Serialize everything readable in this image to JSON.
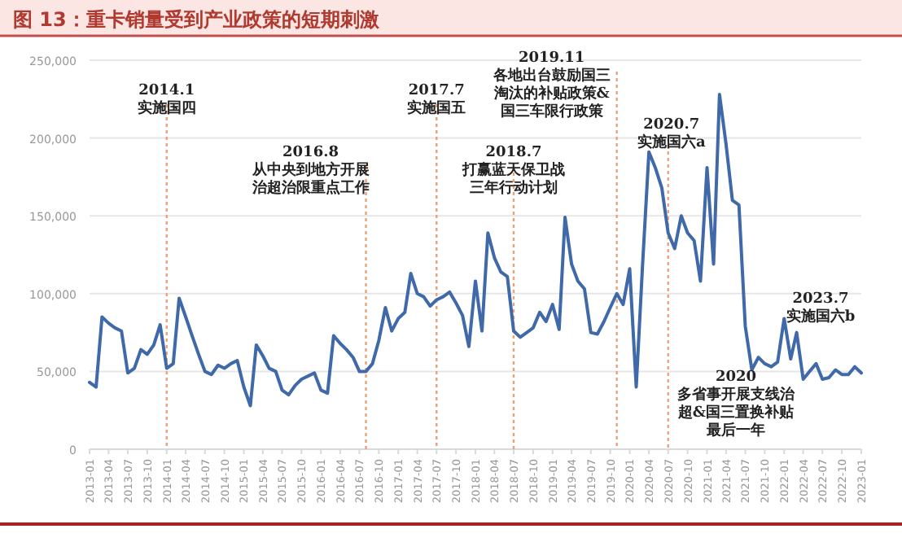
{
  "chart_data": {
    "type": "line",
    "title": "图 13：重卡销量受到产业政策的短期刺激",
    "x": [
      "2013-01",
      "2013-02",
      "2013-03",
      "2013-04",
      "2013-05",
      "2013-06",
      "2013-07",
      "2013-08",
      "2013-09",
      "2013-10",
      "2013-11",
      "2013-12",
      "2014-01",
      "2014-02",
      "2014-03",
      "2014-04",
      "2014-05",
      "2014-06",
      "2014-07",
      "2014-08",
      "2014-09",
      "2014-10",
      "2014-11",
      "2014-12",
      "2015-01",
      "2015-02",
      "2015-03",
      "2015-04",
      "2015-05",
      "2015-06",
      "2015-07",
      "2015-08",
      "2015-09",
      "2015-10",
      "2015-11",
      "2015-12",
      "2016-01",
      "2016-02",
      "2016-03",
      "2016-04",
      "2016-05",
      "2016-06",
      "2016-07",
      "2016-08",
      "2016-09",
      "2016-10",
      "2016-11",
      "2016-12",
      "2017-01",
      "2017-02",
      "2017-03",
      "2017-04",
      "2017-05",
      "2017-06",
      "2017-07",
      "2017-08",
      "2017-09",
      "2017-10",
      "2017-11",
      "2017-12",
      "2018-01",
      "2018-02",
      "2018-03",
      "2018-04",
      "2018-05",
      "2018-06",
      "2018-07",
      "2018-08",
      "2018-09",
      "2018-10",
      "2018-11",
      "2018-12",
      "2019-01",
      "2019-02",
      "2019-03",
      "2019-04",
      "2019-05",
      "2019-06",
      "2019-07",
      "2019-08",
      "2019-09",
      "2019-10",
      "2019-11",
      "2019-12",
      "2020-01",
      "2020-02",
      "2020-03",
      "2020-04",
      "2020-05",
      "2020-06",
      "2020-07",
      "2020-08",
      "2020-09",
      "2020-10",
      "2020-11",
      "2020-12",
      "2021-01",
      "2021-02",
      "2021-03",
      "2021-04",
      "2021-05",
      "2021-06",
      "2021-07",
      "2021-08",
      "2021-09",
      "2021-10",
      "2021-11",
      "2021-12",
      "2022-01",
      "2022-02",
      "2022-03",
      "2022-04",
      "2022-05",
      "2022-06",
      "2022-07",
      "2022-08",
      "2022-09",
      "2022-10",
      "2022-11",
      "2022-12",
      "2023-01"
    ],
    "series": [
      {
        "color": "#3f69a8",
        "values": [
          43000,
          40000,
          85000,
          81000,
          78000,
          76000,
          49000,
          52000,
          64000,
          61000,
          67000,
          80000,
          52000,
          55000,
          97000,
          85000,
          73000,
          61000,
          50000,
          48000,
          54000,
          52000,
          55000,
          57000,
          40000,
          28000,
          67000,
          60000,
          52000,
          50000,
          38000,
          35000,
          41000,
          45000,
          47000,
          49000,
          38000,
          36000,
          73000,
          68000,
          64000,
          59000,
          50000,
          50000,
          55000,
          70000,
          91000,
          76000,
          84000,
          88000,
          113000,
          100000,
          98000,
          92000,
          96000,
          98000,
          101000,
          94000,
          86000,
          66000,
          108000,
          76000,
          139000,
          123000,
          114000,
          111000,
          76000,
          72000,
          75000,
          78000,
          88000,
          82000,
          93000,
          77000,
          149000,
          119000,
          108000,
          103000,
          75000,
          74000,
          82000,
          91000,
          100000,
          93000,
          116000,
          40000,
          116000,
          191000,
          181000,
          168000,
          139000,
          129000,
          150000,
          139000,
          134000,
          108000,
          181000,
          119000,
          228000,
          196000,
          160000,
          157000,
          79000,
          51000,
          59000,
          55000,
          53000,
          56000,
          84000,
          58000,
          75000,
          45000,
          50000,
          55000,
          45000,
          46000,
          51000,
          48000,
          48000,
          53000,
          49000
        ]
      }
    ],
    "xlim": [
      "2013-01",
      "2023-01"
    ],
    "xticks": [
      "2013-01",
      "2013-04",
      "2013-07",
      "2013-10",
      "2014-01",
      "2014-04",
      "2014-07",
      "2014-10",
      "2015-01",
      "2015-04",
      "2015-07",
      "2015-10",
      "2016-01",
      "2016-04",
      "2016-07",
      "2016-10",
      "2017-01",
      "2017-04",
      "2017-07",
      "2017-10",
      "2018-01",
      "2018-04",
      "2018-07",
      "2018-10",
      "2019-01",
      "2019-04",
      "2019-07",
      "2019-10",
      "2020-01",
      "2020-04",
      "2020-07",
      "2020-10",
      "2021-01",
      "2021-04",
      "2021-07",
      "2021-10",
      "2022-01",
      "2022-04",
      "2022-07",
      "2022-10",
      "2023-01"
    ],
    "ylim": [
      0,
      250000
    ],
    "yticks": [
      {
        "value": 0,
        "label": "0"
      },
      {
        "value": 50000,
        "label": "50,000"
      },
      {
        "value": 100000,
        "label": "100,000"
      },
      {
        "value": 150000,
        "label": "150,000"
      },
      {
        "value": 200000,
        "label": "200,000"
      },
      {
        "value": 250000,
        "label": "250,000"
      }
    ],
    "grid": "y",
    "line_style": "solid",
    "ref_lines": [
      {
        "axis": "x",
        "value": "2014-01",
        "label": "2014.1\n实施国四",
        "color": "#e9a27a",
        "line_style": "dotted"
      },
      {
        "axis": "x",
        "value": "2016-08",
        "label": "2016.8\n从中央到地方开展治超治限重点工作",
        "color": "#e9a27a",
        "line_style": "dotted"
      },
      {
        "axis": "x",
        "value": "2017-07",
        "label": "2017.7\n实施国五",
        "color": "#e9a27a",
        "line_style": "dotted"
      },
      {
        "axis": "x",
        "value": "2018-07",
        "label": "2018.7\n打赢蓝天保卫战三年行动计划",
        "color": "#e9a27a",
        "line_style": "dotted"
      },
      {
        "axis": "x",
        "value": "2019-11",
        "label": "2019.11\n各地出台鼓励国三淘汰的补贴政策&国三车限行政策",
        "color": "#e9a27a",
        "line_style": "dotted"
      },
      {
        "axis": "x",
        "value": "2020-07",
        "label": "2020.7\n实施国六a",
        "color": "#e9a27a",
        "line_style": "dotted"
      }
    ],
    "annotations": [
      "2023.7\n实施国六b",
      "2020\n多省事开展支线治超&国三置换补贴最后一年"
    ]
  }
}
